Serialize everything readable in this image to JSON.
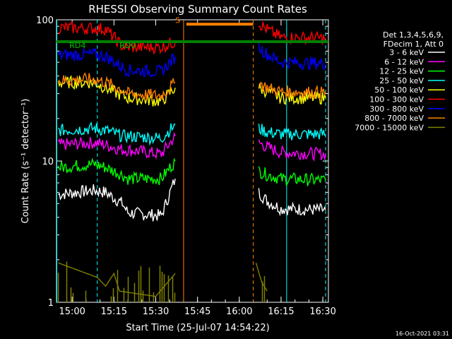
{
  "chart_data": {
    "type": "line",
    "title": "RHESSI Observing Summary Count Rates",
    "xlabel": "Start Time (25-Jul-07 14:54:22)",
    "ylabel": "Count Rate (s⁻¹ detector⁻¹)",
    "y_scale": "log",
    "ylim": [
      1,
      100
    ],
    "xlim": [
      "14:54:22",
      "16:32:00"
    ],
    "x_ticks": [
      "15:00",
      "15:15",
      "15:30",
      "15:45",
      "16:00",
      "16:15",
      "16:30"
    ],
    "y_ticks": [
      "1",
      "10",
      "100"
    ],
    "legend_header": [
      "Det 1,3,4,5,6,9,",
      "FDecim 1, Att 0"
    ],
    "legend_position": "right",
    "footer_date": "16-Oct-2021 03:31",
    "annotations": [
      {
        "text": "RD4",
        "x": "14:59",
        "y": 70
      },
      {
        "text": "RD0",
        "x": "15:17",
        "y": 70
      },
      {
        "text": "S",
        "x": "15:37",
        "y": 95
      }
    ],
    "status_bars": [
      {
        "name": "decimation",
        "color": "#008000",
        "from": "14:54:22",
        "to": "16:32:00",
        "y": 70
      },
      {
        "name": "saa",
        "color": "#ff8000",
        "from": "15:41",
        "to": "16:05",
        "y": 93
      }
    ],
    "markers": [
      {
        "style": "solid",
        "color": "#00ffff",
        "x": "14:54:30"
      },
      {
        "style": "dashed",
        "color": "#00ffff",
        "x": "15:09"
      },
      {
        "style": "solid",
        "color": "#ff8000",
        "x": "15:40"
      },
      {
        "style": "dashed",
        "color": "#ff8000",
        "x": "16:05"
      },
      {
        "style": "solid",
        "color": "#00ffff",
        "x": "16:17"
      },
      {
        "style": "dashed",
        "color": "#00ffff",
        "x": "16:31"
      }
    ],
    "series": [
      {
        "name": "3 - 6 keV",
        "color": "#ffffff",
        "segments": [
          {
            "x": [
              "14:55",
              "15:08",
              "15:12",
              "15:18",
              "15:20",
              "15:32",
              "15:37"
            ],
            "y": [
              5.8,
              6.2,
              6.0,
              5.0,
              4.3,
              4.1,
              7.5
            ]
          },
          {
            "x": [
              "16:07",
              "16:10",
              "16:15",
              "16:31"
            ],
            "y": [
              6.0,
              5.2,
              4.6,
              4.5
            ]
          }
        ]
      },
      {
        "name": "6 - 12 keV",
        "color": "#ff00ff",
        "segments": [
          {
            "x": [
              "14:55",
              "15:08",
              "15:12",
              "15:18",
              "15:20",
              "15:32",
              "15:37"
            ],
            "y": [
              13,
              13.5,
              13,
              12,
              12,
              11.2,
              15
            ]
          },
          {
            "x": [
              "16:07",
              "16:10",
              "16:15",
              "16:31"
            ],
            "y": [
              13.5,
              12.5,
              11.5,
              11.2
            ]
          }
        ]
      },
      {
        "name": "12 - 25 keV",
        "color": "#00ff00",
        "segments": [
          {
            "x": [
              "14:55",
              "15:08",
              "15:12",
              "15:18",
              "15:20",
              "15:32",
              "15:37"
            ],
            "y": [
              9.0,
              9.5,
              9.0,
              8.0,
              7.5,
              7.5,
              10
            ]
          },
          {
            "x": [
              "16:07",
              "16:10",
              "16:15",
              "16:31"
            ],
            "y": [
              8.5,
              8.0,
              7.5,
              7.3
            ]
          }
        ]
      },
      {
        "name": "25 - 50 keV",
        "color": "#00ffff",
        "segments": [
          {
            "x": [
              "14:55",
              "15:08",
              "15:12",
              "15:18",
              "15:20",
              "15:32",
              "15:37"
            ],
            "y": [
              16.5,
              17,
              16.5,
              15,
              15,
              14.5,
              18
            ]
          },
          {
            "x": [
              "16:07",
              "16:10",
              "16:15",
              "16:31"
            ],
            "y": [
              17,
              16,
              15.5,
              15.5
            ]
          }
        ]
      },
      {
        "name": "50 - 100 keV",
        "color": "#ffff00",
        "segments": [
          {
            "x": [
              "14:55",
              "15:08",
              "15:12",
              "15:18",
              "15:20",
              "15:32",
              "15:37"
            ],
            "y": [
              36,
              36,
              33,
              29,
              28,
              26.5,
              33
            ]
          },
          {
            "x": [
              "16:07",
              "16:10",
              "16:15",
              "16:31"
            ],
            "y": [
              33,
              31,
              28,
              28
            ]
          }
        ]
      },
      {
        "name": "100 - 300 keV",
        "color": "#ff0000",
        "segments": [
          {
            "x": [
              "14:55",
              "15:08",
              "15:12",
              "15:18",
              "15:20",
              "15:32",
              "15:37"
            ],
            "y": [
              88,
              87,
              86,
              65,
              64,
              64,
              70
            ]
          },
          {
            "x": [
              "16:07",
              "16:10",
              "16:15",
              "16:31"
            ],
            "y": [
              95,
              85,
              75,
              74
            ]
          }
        ]
      },
      {
        "name": "300 - 800 keV",
        "color": "#0000ff",
        "segments": [
          {
            "x": [
              "14:55",
              "15:08",
              "15:12",
              "15:18",
              "15:20",
              "15:32",
              "15:37"
            ],
            "y": [
              56,
              57,
              55,
              46,
              44,
              43,
              55
            ]
          },
          {
            "x": [
              "16:07",
              "16:10",
              "16:15",
              "16:31"
            ],
            "y": [
              64,
              57,
              50,
              49
            ]
          }
        ]
      },
      {
        "name": "800 - 7000 keV",
        "color": "#ff8000",
        "segments": [
          {
            "x": [
              "14:55",
              "15:08",
              "15:12",
              "15:18",
              "15:20",
              "15:32",
              "15:37"
            ],
            "y": [
              37,
              38,
              36,
              32,
              30,
              29,
              36
            ]
          },
          {
            "x": [
              "16:07",
              "16:10",
              "16:15",
              "16:31"
            ],
            "y": [
              36,
              33,
              31,
              30.5
            ]
          }
        ]
      },
      {
        "name": "7000 - 15000 keV",
        "color": "#808000",
        "segments": [
          {
            "x": [
              "14:55",
              "15:09",
              "15:12",
              "15:15",
              "15:17",
              "15:30",
              "15:37"
            ],
            "y": [
              1.9,
              1.5,
              1.3,
              1.6,
              1.2,
              1.1,
              1.6
            ]
          },
          {
            "x": [
              "16:06",
              "16:08",
              "16:10"
            ],
            "y": [
              1.9,
              1.4,
              1.2
            ]
          }
        ]
      }
    ]
  }
}
